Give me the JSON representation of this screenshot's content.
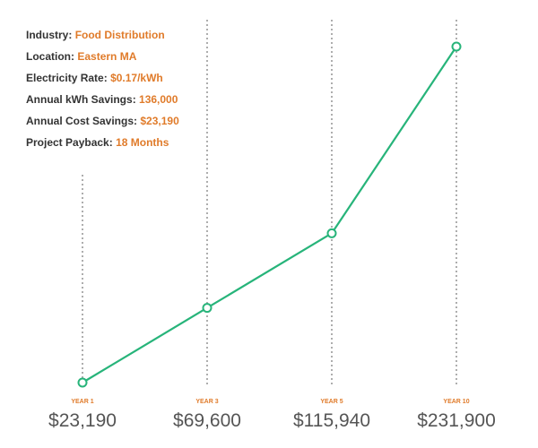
{
  "info": [
    {
      "label": "Industry",
      "value": "Food Distribution"
    },
    {
      "label": "Location",
      "value": "Eastern MA"
    },
    {
      "label": "Electricity Rate",
      "value": "$0.17/kWh"
    },
    {
      "label": "Annual kWh Savings",
      "value": "136,000"
    },
    {
      "label": "Annual Cost Savings",
      "value": "$23,190"
    },
    {
      "label": "Project Payback",
      "value": "18 Months"
    }
  ],
  "colors": {
    "accent": "#e07b2a",
    "line": "#27b47a",
    "label_text": "#333333",
    "value_text": "#555555",
    "gridline": "#999999"
  },
  "chart_data": {
    "type": "line",
    "title": "",
    "xlabel": "",
    "ylabel": "",
    "categories": [
      "YEAR 1",
      "YEAR 3",
      "YEAR 5",
      "YEAR 10"
    ],
    "values": [
      23190,
      69600,
      115940,
      231900
    ],
    "value_labels": [
      "$23,190",
      "$69,600",
      "$115,940",
      "$231,900"
    ],
    "ylim": [
      23190,
      231900
    ],
    "grid": "vertical dotted",
    "legend": "none"
  }
}
